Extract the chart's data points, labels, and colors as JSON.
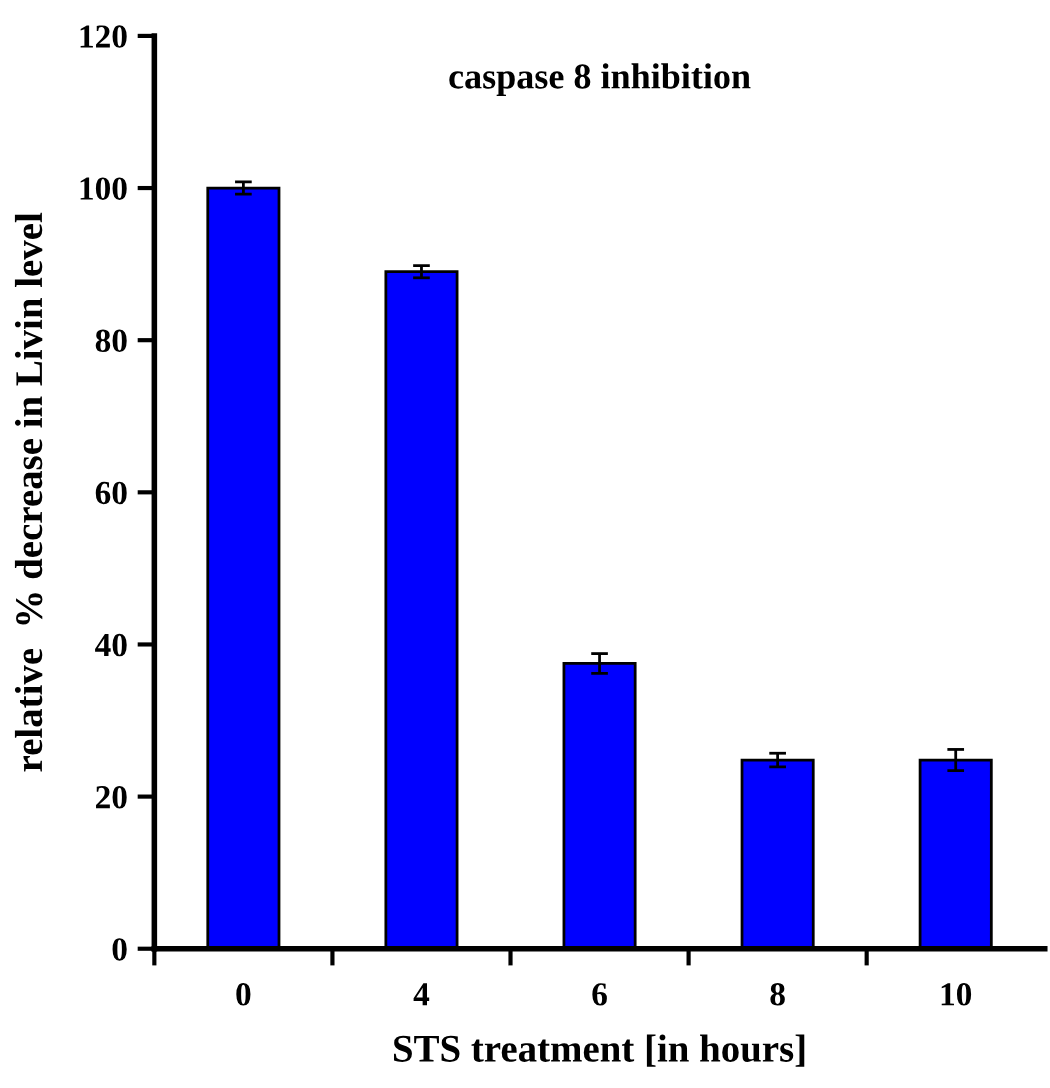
{
  "chart_data": {
    "type": "bar",
    "title": "caspase 8 inhibition",
    "xlabel": "STS treatment [in hours]",
    "ylabel": "relative  % decrease in Livin level",
    "categories": [
      "0",
      "4",
      "6",
      "8",
      "10"
    ],
    "values": [
      100,
      89,
      37.5,
      24.8,
      24.8
    ],
    "errors": [
      0.8,
      0.8,
      1.3,
      0.9,
      1.4
    ],
    "color": "#0000ff",
    "ylim": [
      0,
      120
    ],
    "yticks": [
      0,
      20,
      40,
      60,
      80,
      100,
      120
    ],
    "grid": false,
    "legend": false
  }
}
